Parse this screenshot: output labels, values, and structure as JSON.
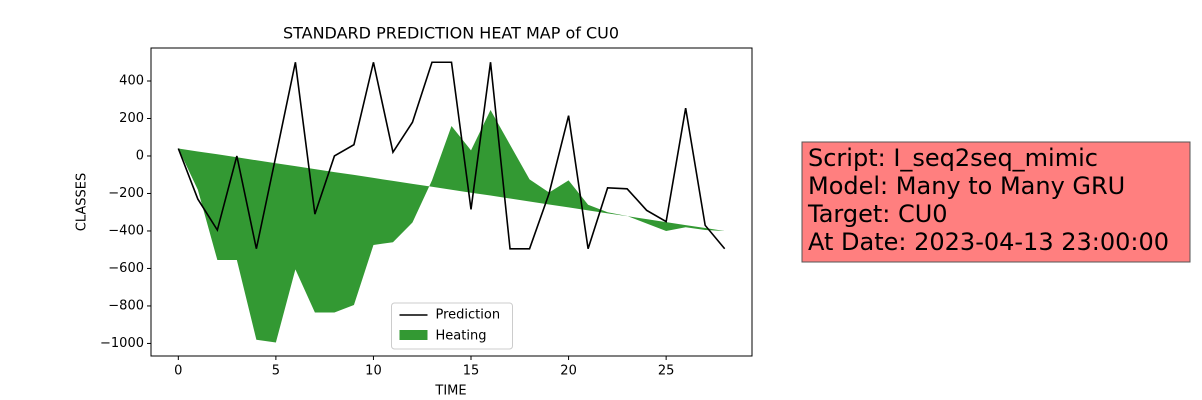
{
  "chart_data": {
    "type": "line_area",
    "title": "STANDARD PREDICTION HEAT MAP of CU0",
    "xlabel": "TIME",
    "ylabel": "CLASSES",
    "x": [
      0,
      1,
      2,
      3,
      4,
      5,
      6,
      7,
      8,
      9,
      10,
      11,
      12,
      13,
      14,
      15,
      16,
      17,
      18,
      19,
      20,
      21,
      22,
      23,
      24,
      25,
      26,
      27,
      28
    ],
    "series": [
      {
        "name": "Prediction",
        "color": "#000000",
        "values": [
          40,
          -230,
          -395,
          0,
          -495,
          0,
          500,
          -310,
          0,
          60,
          500,
          20,
          180,
          500,
          500,
          -285,
          500,
          -495,
          -495,
          -200,
          215,
          -495,
          -170,
          -175,
          -290,
          -350,
          255,
          -370,
          -495
        ]
      },
      {
        "name": "Heating",
        "color": "#008000",
        "alpha": 0.8,
        "values": [
          40,
          -180,
          -555,
          -555,
          -980,
          -995,
          -605,
          -835,
          -835,
          -795,
          -475,
          -460,
          -355,
          -130,
          160,
          30,
          245,
          60,
          -125,
          -195,
          -130,
          -260,
          -300,
          -320,
          -360,
          -400,
          -380,
          -395,
          -400
        ],
        "baseline": [
          40,
          24,
          9,
          -7,
          -23,
          -39,
          -54,
          -70,
          -86,
          -101,
          -117,
          -133,
          -149,
          -164,
          -180,
          -196,
          -211,
          -227,
          -243,
          -259,
          -274,
          -290,
          -306,
          -321,
          -337,
          -353,
          -369,
          -384,
          -400
        ]
      }
    ],
    "xlim": [
      -1.4,
      29.4
    ],
    "xticks": [
      0,
      5,
      10,
      15,
      20,
      25
    ],
    "ylim": [
      -1067,
      576
    ],
    "yticks": [
      {
        "value": -1000,
        "label": "−1000"
      },
      {
        "value": -800,
        "label": "−800"
      },
      {
        "value": -600,
        "label": "−600"
      },
      {
        "value": -400,
        "label": "−400"
      },
      {
        "value": -200,
        "label": "−200"
      },
      0,
      200,
      400
    ],
    "legend": "lower center",
    "annotation": {
      "lines": [
        "Script: I_seq2seq_mimic",
        "Model: Many to Many GRU",
        "Target: CU0",
        "At Date: 2023-04-13 23:00:00"
      ],
      "color": "#ff7f7f"
    }
  }
}
